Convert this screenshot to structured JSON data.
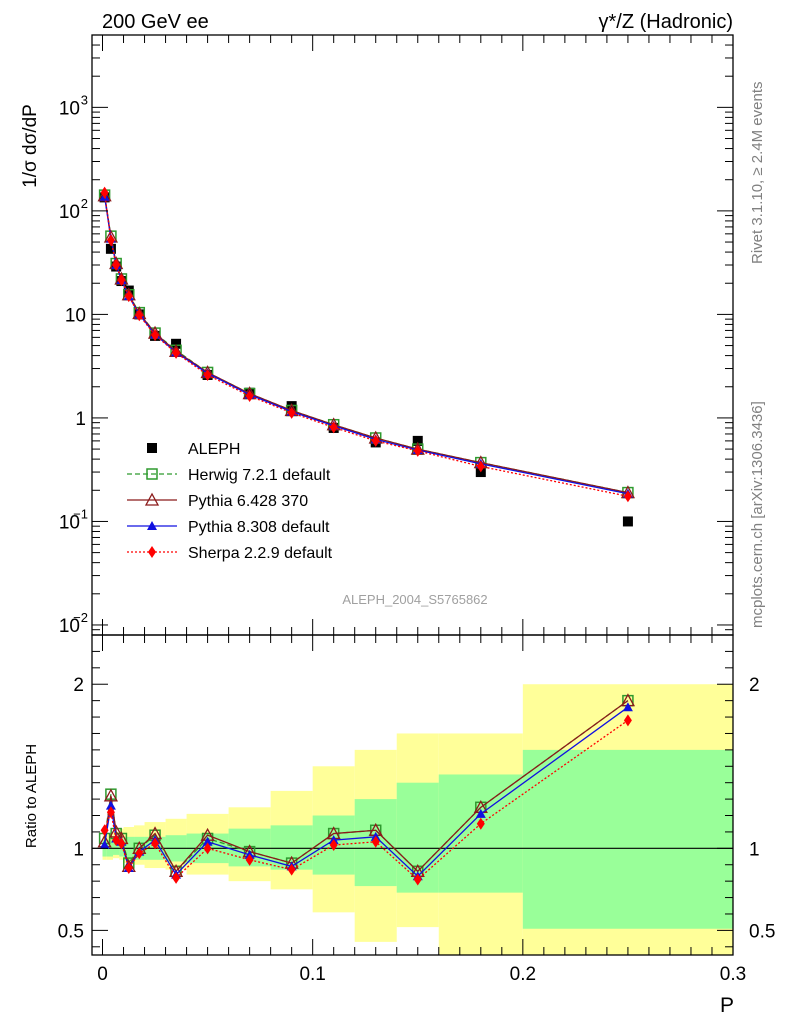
{
  "header": {
    "left": "200 GeV ee",
    "right": "γ*/Z (Hadronic)"
  },
  "side_texts": {
    "rivet": "Rivet 3.1.10, ≥ 2.4M events",
    "mcplots": "mcplots.cern.ch [arXiv:1306.3436]"
  },
  "watermark": "ALEPH_2004_S5765862",
  "chart_data": [
    {
      "type": "scatter",
      "panel": "main",
      "ylabel": "1/σ dσ/dP",
      "yscale": "log",
      "ylim": [
        0.008,
        5000
      ],
      "xlim": [
        -0.005,
        0.3
      ],
      "grid": false,
      "legend_position": "middle-left",
      "y_ticks": [
        {
          "v": 0.01,
          "b": "10",
          "e": "−2"
        },
        {
          "v": 0.1,
          "b": "10",
          "e": "−1"
        },
        {
          "v": 1,
          "b": "1",
          "e": ""
        },
        {
          "v": 10,
          "b": "10",
          "e": ""
        },
        {
          "v": 100,
          "b": "10",
          "e": "2"
        },
        {
          "v": 1000,
          "b": "10",
          "e": "3"
        }
      ],
      "x": [
        0.001,
        0.004,
        0.0065,
        0.009,
        0.0125,
        0.0175,
        0.025,
        0.035,
        0.05,
        0.07,
        0.09,
        0.11,
        0.13,
        0.15,
        0.18,
        0.25
      ],
      "series": [
        {
          "name": "ALEPH",
          "color": "#000000",
          "marker": "square-filled",
          "line": "none",
          "values": [
            135,
            43,
            29,
            21,
            17,
            10,
            6.2,
            5.2,
            2.6,
            1.75,
            1.3,
            0.8,
            0.58,
            0.6,
            0.3,
            0.1
          ]
        },
        {
          "name": "Herwig 7.2.1 default",
          "color": "#2e9a2e",
          "marker": "square-open",
          "line": "dashed",
          "values": [
            142,
            57,
            31,
            22,
            15.5,
            10.4,
            6.6,
            4.5,
            2.75,
            1.72,
            1.18,
            0.86,
            0.64,
            0.5,
            0.37,
            0.19
          ]
        },
        {
          "name": "Pythia 6.428 370",
          "color": "#8b1a1a",
          "marker": "triangle-open",
          "line": "solid",
          "values": [
            140,
            56,
            31,
            22,
            15.5,
            10.2,
            6.6,
            4.4,
            2.75,
            1.72,
            1.18,
            0.86,
            0.64,
            0.5,
            0.37,
            0.19
          ]
        },
        {
          "name": "Pythia 8.308 default",
          "color": "#1010e0",
          "marker": "triangle-filled",
          "line": "solid",
          "values": [
            137,
            54,
            30,
            21.5,
            15,
            10,
            6.4,
            4.3,
            2.7,
            1.68,
            1.15,
            0.84,
            0.62,
            0.49,
            0.36,
            0.185
          ]
        },
        {
          "name": "Sherpa 2.2.9 default",
          "color": "#ff0000",
          "marker": "diamond-filled",
          "line": "dotted",
          "values": [
            150,
            52,
            30,
            21.5,
            15,
            9.8,
            6.3,
            4.25,
            2.6,
            1.63,
            1.12,
            0.81,
            0.6,
            0.48,
            0.34,
            0.175
          ]
        }
      ]
    },
    {
      "type": "line",
      "panel": "ratio",
      "ylabel": "Ratio to ALEPH",
      "ylim": [
        0.35,
        2.3
      ],
      "xlim": [
        -0.005,
        0.3
      ],
      "xlabel": "P",
      "reference_line": 1,
      "y_ticks": [
        "0.5",
        "1",
        "2"
      ],
      "y_tick_values": [
        0.5,
        1,
        2
      ],
      "x_ticks": [
        "0",
        "0.1",
        "0.2",
        "0.3"
      ],
      "x_tick_values": [
        0,
        0.1,
        0.2,
        0.3
      ],
      "uncertainty_bands": {
        "bin_edges": [
          0,
          0.002,
          0.005,
          0.008,
          0.01,
          0.015,
          0.02,
          0.03,
          0.04,
          0.06,
          0.08,
          0.1,
          0.12,
          0.14,
          0.16,
          0.2,
          0.3
        ],
        "stat": {
          "color": "#99ff99",
          "lo": [
            0.95,
            0.95,
            0.96,
            0.95,
            0.93,
            0.93,
            0.93,
            0.92,
            0.91,
            0.89,
            0.87,
            0.84,
            0.77,
            0.73,
            0.73,
            0.51
          ],
          "hi": [
            1.05,
            1.05,
            1.04,
            1.05,
            1.07,
            1.07,
            1.07,
            1.08,
            1.09,
            1.12,
            1.14,
            1.2,
            1.3,
            1.4,
            1.45,
            1.6
          ]
        },
        "total": {
          "color": "#ffff99",
          "lo": [
            0.93,
            0.93,
            0.94,
            0.93,
            0.91,
            0.9,
            0.88,
            0.87,
            0.84,
            0.8,
            0.75,
            0.61,
            0.43,
            0.52,
            0.27,
            0.27
          ],
          "hi": [
            1.08,
            1.09,
            1.1,
            1.12,
            1.13,
            1.14,
            1.16,
            1.18,
            1.21,
            1.25,
            1.35,
            1.5,
            1.6,
            1.7,
            1.7,
            2.0
          ]
        }
      },
      "x": [
        0.001,
        0.004,
        0.0065,
        0.009,
        0.0125,
        0.0175,
        0.025,
        0.035,
        0.05,
        0.07,
        0.09,
        0.11,
        0.13,
        0.15,
        0.18,
        0.25
      ],
      "series": [
        {
          "name": "Herwig 7.2.1 default",
          "color": "#2e9a2e",
          "marker": "square-open",
          "line": "dashed",
          "values": [
            1.06,
            1.33,
            1.09,
            1.06,
            0.91,
            1.0,
            1.08,
            0.86,
            1.06,
            0.98,
            0.91,
            1.09,
            1.11,
            0.86,
            1.25,
            1.9
          ]
        },
        {
          "name": "Pythia 6.428 370",
          "color": "#8b1a1a",
          "marker": "triangle-open",
          "line": "solid",
          "values": [
            1.04,
            1.32,
            1.1,
            1.06,
            0.89,
            1.0,
            1.09,
            0.86,
            1.08,
            0.98,
            0.91,
            1.09,
            1.11,
            0.86,
            1.25,
            1.9
          ]
        },
        {
          "name": "Pythia 8.308 default",
          "color": "#1010e0",
          "marker": "triangle-filled",
          "line": "solid",
          "values": [
            1.02,
            1.26,
            1.06,
            1.04,
            0.88,
            0.98,
            1.05,
            0.84,
            1.04,
            0.96,
            0.89,
            1.05,
            1.07,
            0.83,
            1.21,
            1.86
          ]
        },
        {
          "name": "Sherpa 2.2.9 default",
          "color": "#ff0000",
          "marker": "diamond-filled",
          "line": "dotted",
          "values": [
            1.11,
            1.22,
            1.05,
            1.03,
            0.88,
            0.97,
            1.03,
            0.82,
            1.0,
            0.93,
            0.87,
            1.02,
            1.04,
            0.81,
            1.15,
            1.78
          ]
        }
      ]
    }
  ]
}
